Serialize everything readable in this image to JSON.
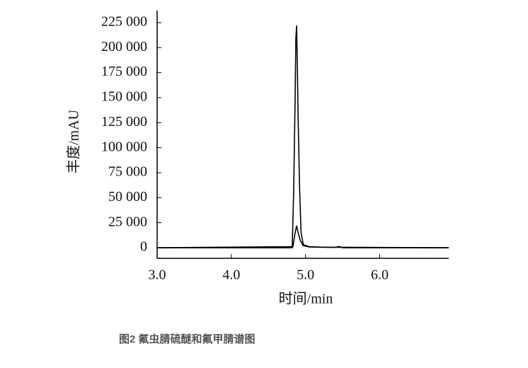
{
  "chart_data": {
    "type": "line",
    "x_label": "时间/min",
    "y_label": "丰度/mAU",
    "caption": "图2 氟虫腈硫醚和氟甲腈谱图",
    "xlim": [
      3.0,
      6.93
    ],
    "xticks": [
      {
        "value": 3,
        "label": "3.0"
      },
      {
        "value": 4,
        "label": "4.0"
      },
      {
        "value": 5,
        "label": "5.0"
      },
      {
        "value": 6,
        "label": "6.0"
      }
    ],
    "ylim": [
      -10600,
      237000
    ],
    "yticks": [
      0,
      {
        "value": 25000,
        "label": "25 000"
      },
      {
        "value": 50000,
        "label": "50 000"
      },
      {
        "value": 75000,
        "label": "75 000"
      },
      {
        "value": 100000,
        "label": "100 000"
      },
      {
        "value": 125000,
        "label": "125 000"
      },
      {
        "value": 150000,
        "label": "150 000"
      },
      {
        "value": 175000,
        "label": "175 000"
      },
      {
        "value": 200000,
        "label": "200 000"
      },
      {
        "value": 225000,
        "label": "225 000"
      }
    ],
    "series": [
      {
        "color": "#000000",
        "x": [
          3.0,
          4.82,
          4.84,
          4.86,
          4.87,
          4.88,
          4.89,
          4.9,
          4.92,
          4.94,
          4.97,
          5.05,
          5.2,
          6.93
        ],
        "values": [
          0,
          0,
          55000,
          150000,
          210000,
          222000,
          180000,
          130000,
          60000,
          15000,
          3000,
          1000,
          500,
          0
        ]
      },
      {
        "color": "#000000",
        "x": [
          3.0,
          4.83,
          4.86,
          4.88,
          4.9,
          4.93,
          4.97,
          5.05,
          5.4,
          5.45,
          5.5,
          6.93
        ],
        "values": [
          0,
          1000,
          15000,
          22000,
          15000,
          7000,
          2000,
          800,
          300,
          1200,
          0,
          0
        ]
      }
    ]
  }
}
